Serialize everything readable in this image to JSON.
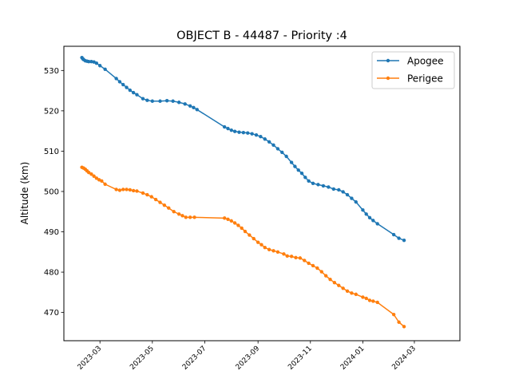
{
  "chart_data": {
    "type": "line",
    "title": "OBJECT B - 44487 - Priority :4",
    "xlabel": "",
    "ylabel": "Altitude (km)",
    "xlim": [
      "2023-01-18",
      "2024-04-23"
    ],
    "ylim": [
      463,
      536
    ],
    "x_ticks": [
      "2023-03",
      "2023-05",
      "2023-07",
      "2023-09",
      "2023-11",
      "2024-01",
      "2024-03"
    ],
    "y_ticks": [
      470,
      480,
      490,
      500,
      510,
      520,
      530
    ],
    "legend_position": "top-right",
    "colors": {
      "apogee": "#1f77b4",
      "perigee": "#ff7f0e"
    },
    "series": [
      {
        "name": "Apogee",
        "points": [
          [
            "2023-02-08",
            533.2
          ],
          [
            "2023-02-09",
            532.9
          ],
          [
            "2023-02-10",
            532.7
          ],
          [
            "2023-02-12",
            532.4
          ],
          [
            "2023-02-14",
            532.3
          ],
          [
            "2023-02-16",
            532.2
          ],
          [
            "2023-02-19",
            532.2
          ],
          [
            "2023-02-22",
            532.1
          ],
          [
            "2023-02-25",
            531.8
          ],
          [
            "2023-03-01",
            531.2
          ],
          [
            "2023-03-07",
            530.3
          ],
          [
            "2023-03-20",
            528.0
          ],
          [
            "2023-03-24",
            527.2
          ],
          [
            "2023-03-28",
            526.5
          ],
          [
            "2023-04-01",
            525.8
          ],
          [
            "2023-04-05",
            525.1
          ],
          [
            "2023-04-09",
            524.5
          ],
          [
            "2023-04-13",
            524.0
          ],
          [
            "2023-04-20",
            523.0
          ],
          [
            "2023-04-25",
            522.6
          ],
          [
            "2023-05-01",
            522.4
          ],
          [
            "2023-05-10",
            522.4
          ],
          [
            "2023-05-18",
            522.5
          ],
          [
            "2023-05-25",
            522.4
          ],
          [
            "2023-06-01",
            522.1
          ],
          [
            "2023-06-08",
            521.7
          ],
          [
            "2023-06-14",
            521.2
          ],
          [
            "2023-06-18",
            520.8
          ],
          [
            "2023-06-22",
            520.3
          ],
          [
            "2023-07-24",
            516.0
          ],
          [
            "2023-07-28",
            515.6
          ],
          [
            "2023-08-01",
            515.2
          ],
          [
            "2023-08-05",
            514.9
          ],
          [
            "2023-08-10",
            514.7
          ],
          [
            "2023-08-15",
            514.6
          ],
          [
            "2023-08-20",
            514.5
          ],
          [
            "2023-08-25",
            514.3
          ],
          [
            "2023-08-30",
            514.0
          ],
          [
            "2023-09-04",
            513.6
          ],
          [
            "2023-09-09",
            513.0
          ],
          [
            "2023-09-14",
            512.3
          ],
          [
            "2023-09-19",
            511.5
          ],
          [
            "2023-09-24",
            510.6
          ],
          [
            "2023-09-29",
            509.7
          ],
          [
            "2023-10-04",
            508.7
          ],
          [
            "2023-10-10",
            507.2
          ],
          [
            "2023-10-14",
            506.2
          ],
          [
            "2023-10-18",
            505.3
          ],
          [
            "2023-10-22",
            504.5
          ],
          [
            "2023-10-26",
            503.5
          ],
          [
            "2023-10-30",
            502.6
          ],
          [
            "2023-11-04",
            502.0
          ],
          [
            "2023-11-10",
            501.7
          ],
          [
            "2023-11-16",
            501.4
          ],
          [
            "2023-11-22",
            501.1
          ],
          [
            "2023-11-28",
            500.6
          ],
          [
            "2023-12-04",
            500.4
          ],
          [
            "2023-12-09",
            499.9
          ],
          [
            "2023-12-14",
            499.2
          ],
          [
            "2023-12-19",
            498.3
          ],
          [
            "2023-12-24",
            497.4
          ],
          [
            "2024-01-01",
            495.4
          ],
          [
            "2024-01-05",
            494.4
          ],
          [
            "2024-01-09",
            493.5
          ],
          [
            "2024-01-13",
            492.8
          ],
          [
            "2024-01-18",
            492.0
          ],
          [
            "2024-02-06",
            489.3
          ],
          [
            "2024-02-12",
            488.4
          ],
          [
            "2024-02-18",
            487.9
          ]
        ]
      },
      {
        "name": "Perigee",
        "points": [
          [
            "2023-02-08",
            506.0
          ],
          [
            "2023-02-10",
            505.8
          ],
          [
            "2023-02-12",
            505.5
          ],
          [
            "2023-02-14",
            505.1
          ],
          [
            "2023-02-16",
            504.7
          ],
          [
            "2023-02-19",
            504.3
          ],
          [
            "2023-02-22",
            503.8
          ],
          [
            "2023-02-25",
            503.3
          ],
          [
            "2023-02-28",
            502.9
          ],
          [
            "2023-03-03",
            502.6
          ],
          [
            "2023-03-07",
            501.8
          ],
          [
            "2023-03-20",
            500.5
          ],
          [
            "2023-03-24",
            500.3
          ],
          [
            "2023-03-28",
            500.5
          ],
          [
            "2023-04-01",
            500.5
          ],
          [
            "2023-04-05",
            500.4
          ],
          [
            "2023-04-09",
            500.2
          ],
          [
            "2023-04-13",
            500.1
          ],
          [
            "2023-04-20",
            499.6
          ],
          [
            "2023-04-25",
            499.2
          ],
          [
            "2023-04-30",
            498.7
          ],
          [
            "2023-05-05",
            498.0
          ],
          [
            "2023-05-10",
            497.3
          ],
          [
            "2023-05-15",
            496.6
          ],
          [
            "2023-05-20",
            495.9
          ],
          [
            "2023-05-26",
            495.0
          ],
          [
            "2023-06-01",
            494.4
          ],
          [
            "2023-06-05",
            494.0
          ],
          [
            "2023-06-09",
            493.6
          ],
          [
            "2023-06-14",
            493.6
          ],
          [
            "2023-06-19",
            493.6
          ],
          [
            "2023-07-24",
            493.4
          ],
          [
            "2023-07-28",
            493.1
          ],
          [
            "2023-08-01",
            492.7
          ],
          [
            "2023-08-05",
            492.2
          ],
          [
            "2023-08-09",
            491.6
          ],
          [
            "2023-08-13",
            490.9
          ],
          [
            "2023-08-17",
            490.1
          ],
          [
            "2023-08-22",
            489.2
          ],
          [
            "2023-08-27",
            488.3
          ],
          [
            "2023-09-01",
            487.4
          ],
          [
            "2023-09-05",
            486.8
          ],
          [
            "2023-09-09",
            486.1
          ],
          [
            "2023-09-14",
            485.6
          ],
          [
            "2023-09-19",
            485.3
          ],
          [
            "2023-09-24",
            485.0
          ],
          [
            "2023-10-01",
            484.5
          ],
          [
            "2023-10-05",
            484.0
          ],
          [
            "2023-10-10",
            483.9
          ],
          [
            "2023-10-15",
            483.6
          ],
          [
            "2023-10-20",
            483.5
          ],
          [
            "2023-10-25",
            482.9
          ],
          [
            "2023-10-30",
            482.2
          ],
          [
            "2023-11-04",
            481.6
          ],
          [
            "2023-11-09",
            481.0
          ],
          [
            "2023-11-14",
            480.1
          ],
          [
            "2023-11-19",
            479.1
          ],
          [
            "2023-11-24",
            478.2
          ],
          [
            "2023-11-29",
            477.4
          ],
          [
            "2023-12-04",
            476.7
          ],
          [
            "2023-12-09",
            476.0
          ],
          [
            "2023-12-14",
            475.3
          ],
          [
            "2023-12-19",
            474.8
          ],
          [
            "2023-12-24",
            474.5
          ],
          [
            "2024-01-01",
            473.8
          ],
          [
            "2024-01-05",
            473.5
          ],
          [
            "2024-01-09",
            473.0
          ],
          [
            "2024-01-13",
            472.8
          ],
          [
            "2024-01-18",
            472.5
          ],
          [
            "2024-02-06",
            469.5
          ],
          [
            "2024-02-12",
            467.6
          ],
          [
            "2024-02-18",
            466.5
          ]
        ]
      }
    ]
  }
}
